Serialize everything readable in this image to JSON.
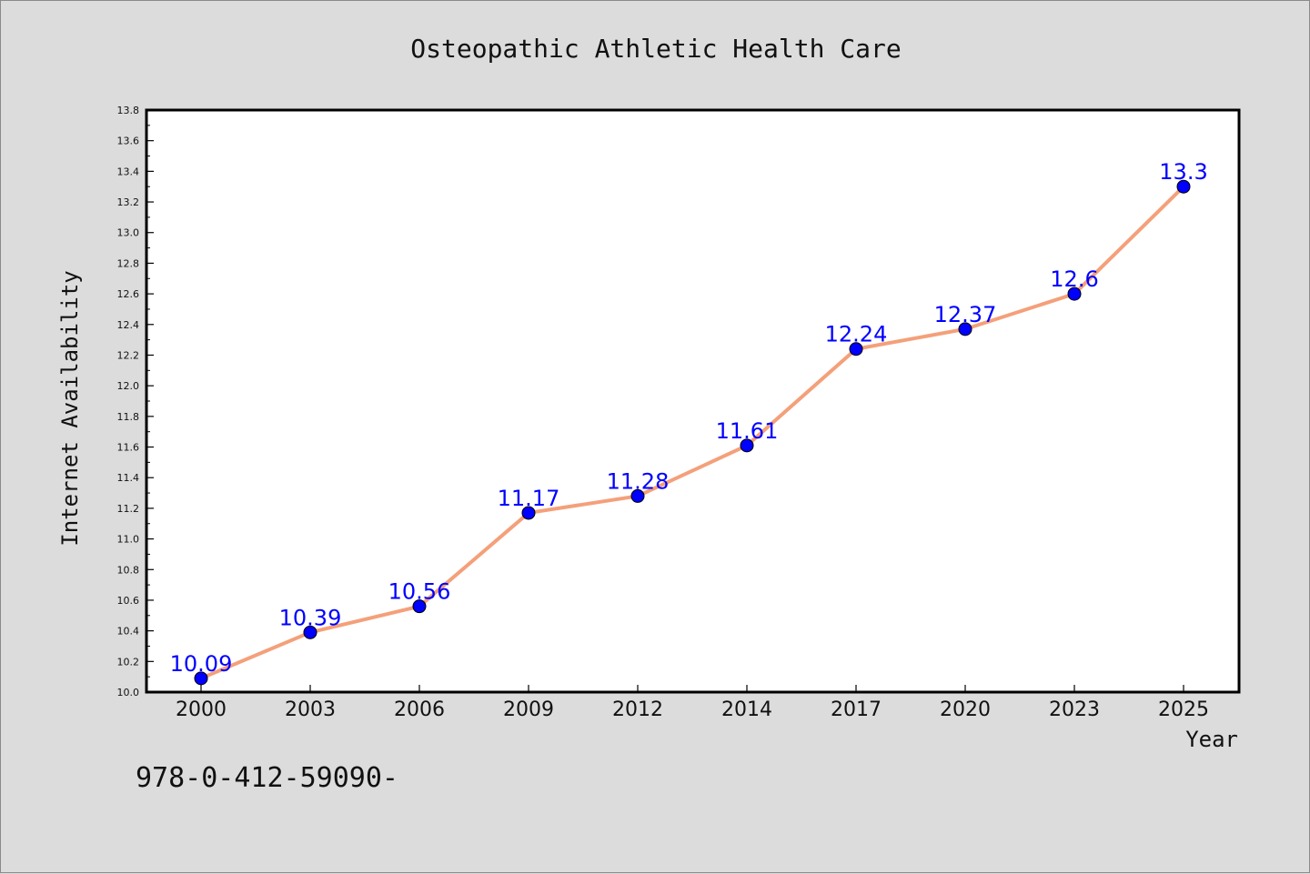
{
  "chart_data": {
    "type": "line",
    "title": "Osteopathic Athletic Health Care",
    "xlabel": "Year",
    "ylabel": "Internet Availability",
    "categories": [
      "2000",
      "2003",
      "2006",
      "2009",
      "2012",
      "2014",
      "2017",
      "2020",
      "2023",
      "2025"
    ],
    "series": [
      {
        "values": [
          10.09,
          10.39,
          10.56,
          11.17,
          11.28,
          11.61,
          12.24,
          12.37,
          12.6,
          13.3
        ],
        "data_labels": [
          "10.09",
          "10.39",
          "10.56",
          "11.17",
          "11.28",
          "11.61",
          "12.24",
          "12.37",
          "12.6",
          "13.3"
        ],
        "line_color": "#f4a07a",
        "marker_color": "#0000ff"
      }
    ],
    "ylim": [
      10.0,
      13.8
    ],
    "yticks": [
      "10.0",
      "10.2",
      "10.4",
      "10.6",
      "10.8",
      "11.0",
      "11.2",
      "11.4",
      "11.6",
      "11.8",
      "12.0",
      "12.2",
      "12.4",
      "12.6",
      "12.8",
      "13.0",
      "13.2",
      "13.4",
      "13.6",
      "13.8"
    ],
    "grid": false,
    "legend": "none"
  },
  "footer_text": "978-0-412-59090-"
}
